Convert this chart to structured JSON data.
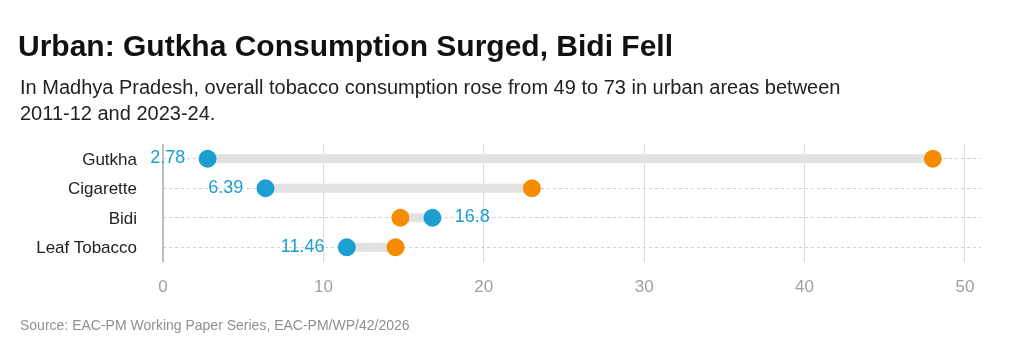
{
  "chart_data": {
    "type": "scatter",
    "orientation": "horizontal",
    "title": "Urban: Gutkha Consumption Surged, Bidi Fell",
    "subtitle": "In Madhya Pradesh, overall tobacco consumption rose from 49 to 73 in urban areas between 2011-12 and 2023-24.",
    "categories": [
      "Gutkha",
      "Cigarette",
      "Bidi",
      "Leaf Tobacco"
    ],
    "series": [
      {
        "color": "#1b9fd0",
        "values": [
          2.78,
          6.39,
          16.8,
          11.46
        ],
        "value_labels": [
          "2.78",
          "6.39",
          "16.8",
          "11.46"
        ]
      },
      {
        "color": "#f78b00",
        "values": [
          48.0,
          23.0,
          14.8,
          14.5
        ]
      }
    ],
    "xlim": [
      0,
      51
    ],
    "xticks": [
      0,
      10,
      20,
      30,
      40,
      50
    ],
    "grid": true,
    "marker": "circle",
    "annotations": [
      "Source: EAC-PM Working Paper Series, EAC-PM/WP/42/2026"
    ]
  }
}
